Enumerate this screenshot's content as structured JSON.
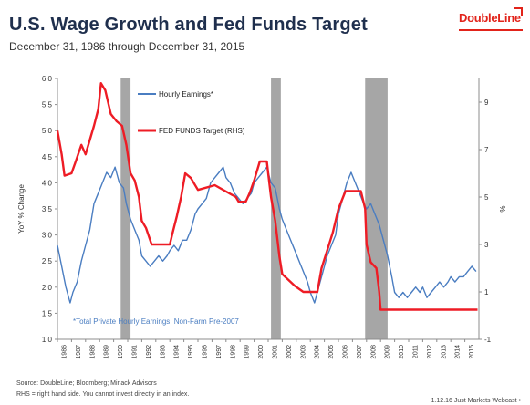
{
  "header": {
    "title": "U.S. Wage Growth and Fed Funds Target",
    "subtitle": "December 31, 1986 through December 31, 2015",
    "logo_text": "DoubleLine"
  },
  "footer": {
    "source": "Source: DoubleLine; Bloomberg; Minack Advisors",
    "note": "RHS = right hand side. You cannot invest directly in an index.",
    "right": "1.12.16 Just Markets Webcast •"
  },
  "colors": {
    "earnings": "#4a7dc1",
    "fed": "#ee1c25",
    "recession": "#a6a6a6"
  },
  "chart_data": {
    "type": "line",
    "title": "U.S. Wage Growth and Fed Funds Target",
    "ylabel": "YoY % Change",
    "y2label": "%",
    "xlim": [
      1986,
      2016
    ],
    "ylim": [
      1.0,
      6.0
    ],
    "y2lim": [
      -1,
      10
    ],
    "yticks": [
      "1.0",
      "1.5",
      "2.0",
      "2.5",
      "3.0",
      "3.5",
      "4.0",
      "4.5",
      "5.0",
      "5.5",
      "6.0"
    ],
    "y2ticks": [
      "-1",
      "1",
      "3",
      "5",
      "7",
      "9"
    ],
    "xticks": [
      "1986",
      "1987",
      "1988",
      "1989",
      "1990",
      "1991",
      "1992",
      "1993",
      "1994",
      "1995",
      "1996",
      "1997",
      "1998",
      "1999",
      "2000",
      "2001",
      "2002",
      "2003",
      "2004",
      "2005",
      "2006",
      "2007",
      "2008",
      "2009",
      "2010",
      "2011",
      "2012",
      "2013",
      "2014",
      "2015"
    ],
    "recessions": [
      [
        1990.5,
        1991.2
      ],
      [
        2001.2,
        2001.9
      ],
      [
        2007.9,
        2009.5
      ]
    ],
    "annotation": "*Total Private Hourly Earnings; Non-Farm Pre-2007",
    "legend_position": "top-left",
    "series": [
      {
        "name": "Hourly Earnings*",
        "axis": "left",
        "x": [
          1986.0,
          1986.3,
          1986.6,
          1986.9,
          1987.1,
          1987.4,
          1987.7,
          1988.0,
          1988.3,
          1988.6,
          1988.9,
          1989.2,
          1989.5,
          1989.8,
          1990.1,
          1990.4,
          1990.7,
          1990.9,
          1991.2,
          1991.5,
          1991.8,
          1992.0,
          1992.3,
          1992.6,
          1992.9,
          1993.2,
          1993.5,
          1993.8,
          1994.0,
          1994.3,
          1994.6,
          1994.9,
          1995.2,
          1995.5,
          1995.8,
          1996.0,
          1996.3,
          1996.6,
          1996.9,
          1997.2,
          1997.5,
          1997.8,
          1998.0,
          1998.3,
          1998.6,
          1998.9,
          1999.2,
          1999.5,
          1999.8,
          2000.0,
          2000.3,
          2000.6,
          2000.9,
          2001.2,
          2001.5,
          2001.8,
          2002.0,
          2002.3,
          2002.6,
          2002.9,
          2003.2,
          2003.5,
          2003.8,
          2004.0,
          2004.3,
          2004.6,
          2004.9,
          2005.2,
          2005.5,
          2005.8,
          2006.0,
          2006.3,
          2006.6,
          2006.9,
          2007.2,
          2007.5,
          2007.8,
          2008.0,
          2008.3,
          2008.6,
          2008.9,
          2009.2,
          2009.5,
          2009.8,
          2010.0,
          2010.3,
          2010.6,
          2010.9,
          2011.2,
          2011.5,
          2011.8,
          2012.0,
          2012.3,
          2012.6,
          2012.9,
          2013.2,
          2013.5,
          2013.8,
          2014.0,
          2014.3,
          2014.6,
          2014.9,
          2015.2,
          2015.5,
          2015.8
        ],
        "values": [
          2.8,
          2.4,
          2.0,
          1.7,
          1.9,
          2.1,
          2.5,
          2.8,
          3.1,
          3.6,
          3.8,
          4.0,
          4.2,
          4.1,
          4.3,
          4.0,
          3.9,
          3.6,
          3.3,
          3.1,
          2.9,
          2.6,
          2.5,
          2.4,
          2.5,
          2.6,
          2.5,
          2.6,
          2.7,
          2.8,
          2.7,
          2.9,
          2.9,
          3.1,
          3.4,
          3.5,
          3.6,
          3.7,
          4.0,
          4.1,
          4.2,
          4.3,
          4.1,
          4.0,
          3.8,
          3.7,
          3.6,
          3.7,
          3.8,
          4.0,
          4.1,
          4.2,
          4.3,
          4.0,
          3.9,
          3.5,
          3.3,
          3.1,
          2.9,
          2.7,
          2.5,
          2.3,
          2.1,
          1.9,
          1.7,
          2.0,
          2.3,
          2.6,
          2.8,
          3.0,
          3.4,
          3.7,
          4.0,
          4.2,
          4.0,
          3.8,
          3.6,
          3.5,
          3.6,
          3.4,
          3.2,
          2.9,
          2.6,
          2.2,
          1.9,
          1.8,
          1.9,
          1.8,
          1.9,
          2.0,
          1.9,
          2.0,
          1.8,
          1.9,
          2.0,
          2.1,
          2.0,
          2.1,
          2.2,
          2.1,
          2.2,
          2.2,
          2.3,
          2.4,
          2.3
        ]
      },
      {
        "name": "FED FUNDS Target (RHS)",
        "axis": "right",
        "x": [
          1986.0,
          1986.3,
          1986.5,
          1987.0,
          1987.3,
          1987.7,
          1988.0,
          1988.3,
          1988.6,
          1988.9,
          1989.1,
          1989.4,
          1989.8,
          1990.2,
          1990.6,
          1990.9,
          1991.2,
          1991.5,
          1991.8,
          1992.0,
          1992.3,
          1992.7,
          1993.0,
          1994.0,
          1994.2,
          1994.5,
          1994.8,
          1995.1,
          1995.5,
          1996.0,
          1997.2,
          1998.7,
          1998.9,
          1999.4,
          1999.7,
          2000.0,
          2000.4,
          2000.9,
          2001.0,
          2001.2,
          2001.5,
          2001.8,
          2002.0,
          2002.9,
          2003.5,
          2004.5,
          2004.8,
          2005.2,
          2005.6,
          2006.0,
          2006.5,
          2007.6,
          2007.9,
          2008.0,
          2008.3,
          2008.7,
          2008.9,
          2009.0,
          2015.9
        ],
        "values": [
          7.8,
          6.8,
          5.9,
          6.0,
          6.5,
          7.2,
          6.8,
          7.4,
          8.0,
          8.7,
          9.8,
          9.5,
          8.5,
          8.2,
          8.0,
          7.2,
          6.0,
          5.7,
          5.0,
          4.0,
          3.7,
          3.0,
          3.0,
          3.0,
          3.5,
          4.2,
          5.0,
          6.0,
          5.8,
          5.3,
          5.5,
          5.0,
          4.8,
          4.8,
          5.2,
          5.7,
          6.5,
          6.5,
          6.0,
          5.0,
          4.0,
          2.5,
          1.75,
          1.25,
          1.0,
          1.0,
          2.0,
          2.75,
          3.5,
          4.5,
          5.25,
          5.25,
          4.5,
          3.0,
          2.25,
          2.0,
          1.0,
          0.25,
          0.25
        ]
      }
    ]
  }
}
